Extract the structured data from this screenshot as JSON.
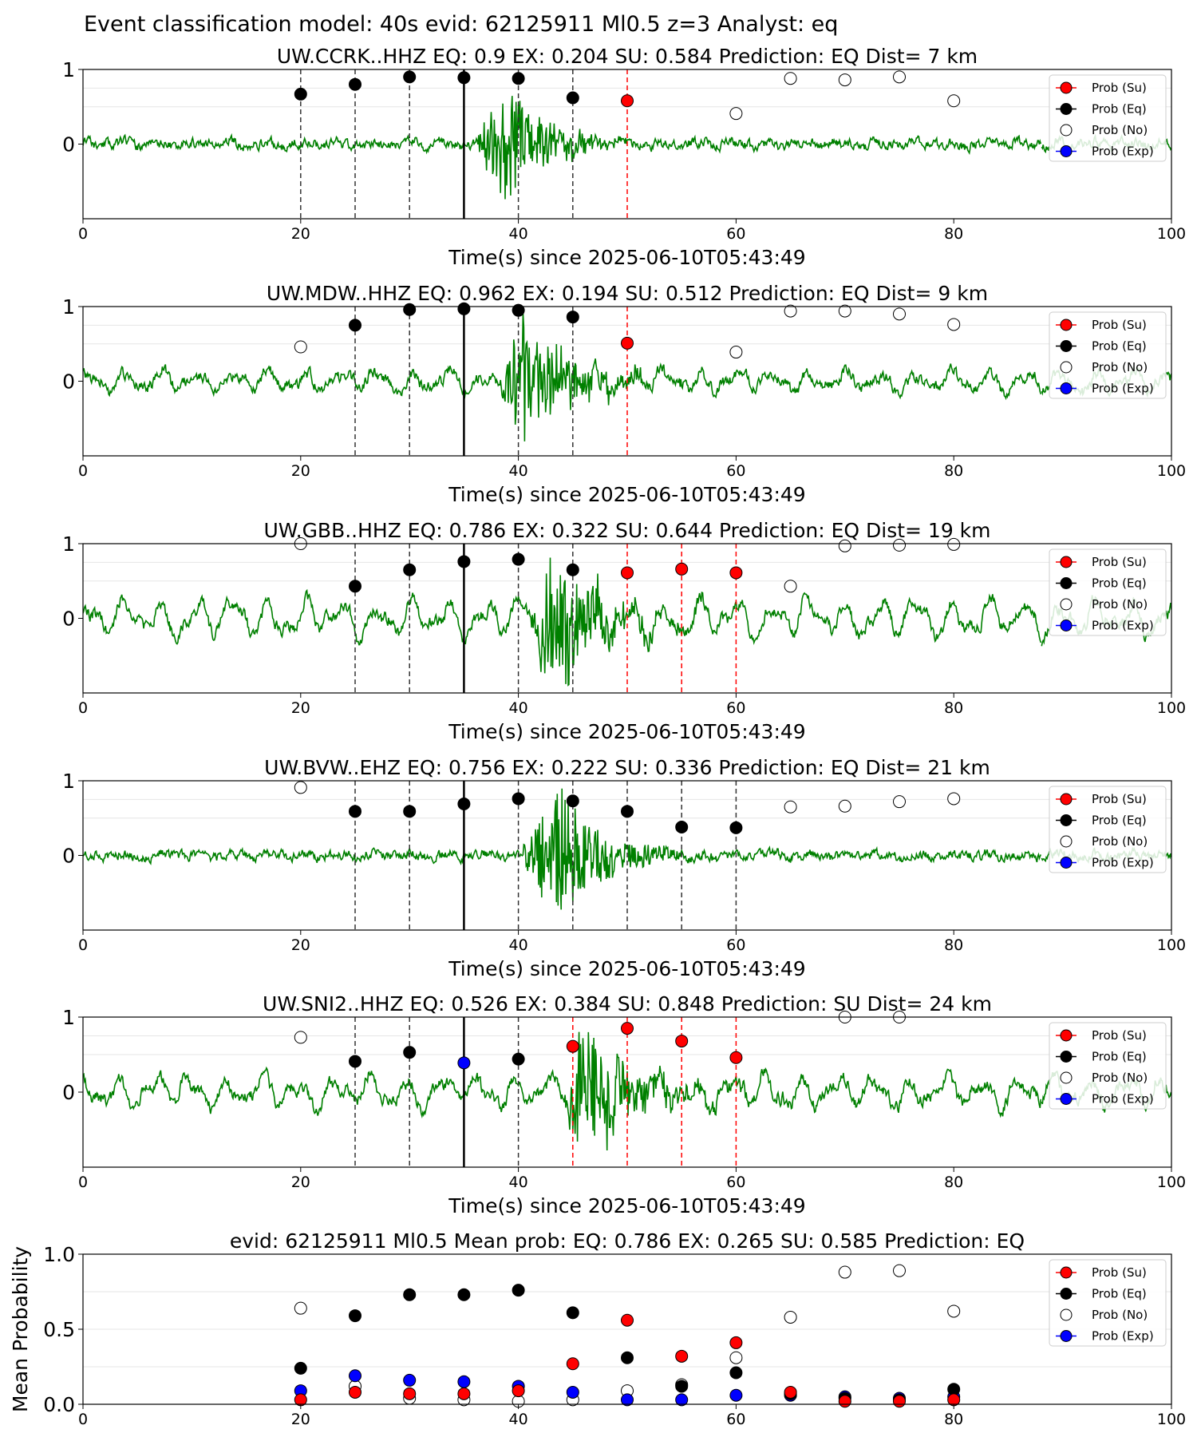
{
  "figure_title": "Event classification model: 40s evid: 62125911 Ml0.5 z=3 Analyst: eq",
  "legend": {
    "su": "Prob (Su)",
    "eq": "Prob (Eq)",
    "no": "Prob (No)",
    "exp": "Prob (Exp)"
  },
  "colors": {
    "su": "#ff0000",
    "eq": "#000000",
    "no": "#ffffff",
    "exp": "#0000ff",
    "trace": "#008000",
    "trace_faded": "#b7d9b7",
    "eq_line": "#000000",
    "su_line": "#ff0000"
  },
  "chart_data": [
    {
      "type": "scatter",
      "title": "UW.CCRK..HHZ   EQ: 0.9   EX: 0.204   SU: 0.584   Prediction: EQ    Dist= 7 km",
      "xlabel": "Time(s) since 2025-06-10T05:43:49",
      "ylabel": "",
      "xlim": [
        0,
        100
      ],
      "ylim": [
        -1,
        1
      ],
      "xticks": [
        "0",
        "20",
        "40",
        "60",
        "80",
        "100"
      ],
      "yticks": [
        "0",
        "1"
      ],
      "grid": true,
      "legend_position": "upper-right",
      "trace": {
        "amplitude": 0.05,
        "noise": 0.06,
        "event_start": 36,
        "event_peak": 38.5,
        "event_amp": 0.9,
        "decay": 3.5,
        "seed": 11
      },
      "series": {
        "eq": [
          [
            20,
            0.67
          ],
          [
            25,
            0.8
          ],
          [
            30,
            0.9
          ],
          [
            35,
            0.89
          ],
          [
            40,
            0.88
          ],
          [
            45,
            0.62
          ]
        ],
        "su": [
          [
            50,
            0.58
          ]
        ],
        "no": [
          [
            60,
            0.41
          ],
          [
            65,
            0.88
          ],
          [
            70,
            0.86
          ],
          [
            75,
            0.9
          ],
          [
            80,
            0.58
          ]
        ],
        "exp": []
      },
      "eq_window_lines": [
        20,
        25,
        30,
        40,
        45
      ],
      "su_window_lines": [
        50
      ],
      "reference_line": 35
    },
    {
      "type": "scatter",
      "title": "UW.MDW..HHZ   EQ: 0.962   EX: 0.194   SU: 0.512   Prediction: EQ    Dist= 9 km",
      "xlabel": "Time(s) since 2025-06-10T05:43:49",
      "ylabel": "",
      "xlim": [
        0,
        100
      ],
      "ylim": [
        -1,
        1
      ],
      "xticks": [
        "0",
        "20",
        "40",
        "60",
        "80",
        "100"
      ],
      "yticks": [
        "0",
        "1"
      ],
      "grid": true,
      "legend_position": "upper-right",
      "trace": {
        "amplitude": 0.17,
        "noise": 0.07,
        "event_start": 38,
        "event_peak": 40.5,
        "event_amp": 0.95,
        "decay": 4,
        "seed": 23
      },
      "series": {
        "eq": [
          [
            25,
            0.75
          ],
          [
            30,
            0.96
          ],
          [
            35,
            0.97
          ],
          [
            40,
            0.95
          ],
          [
            45,
            0.86
          ]
        ],
        "su": [
          [
            50,
            0.51
          ]
        ],
        "no": [
          [
            20,
            0.46
          ],
          [
            60,
            0.39
          ],
          [
            65,
            0.94
          ],
          [
            70,
            0.94
          ],
          [
            75,
            0.9
          ],
          [
            80,
            0.76
          ]
        ],
        "exp": []
      },
      "eq_window_lines": [
        25,
        30,
        40,
        45
      ],
      "su_window_lines": [
        50
      ],
      "reference_line": 35
    },
    {
      "type": "scatter",
      "title": "UW.GBB..HHZ   EQ: 0.786   EX: 0.322   SU: 0.644   Prediction: EQ    Dist= 19 km",
      "xlabel": "Time(s) since 2025-06-10T05:43:49",
      "ylabel": "",
      "xlim": [
        0,
        100
      ],
      "ylim": [
        -1,
        1
      ],
      "xticks": [
        "0",
        "20",
        "40",
        "60",
        "80",
        "100"
      ],
      "yticks": [
        "0",
        "1"
      ],
      "grid": true,
      "legend_position": "upper-right",
      "trace": {
        "amplitude": 0.3,
        "noise": 0.08,
        "event_start": 41,
        "event_peak": 43,
        "event_amp": 0.95,
        "decay": 4.5,
        "seed": 37
      },
      "series": {
        "eq": [
          [
            25,
            0.43
          ],
          [
            30,
            0.65
          ],
          [
            35,
            0.76
          ],
          [
            40,
            0.79
          ],
          [
            45,
            0.65
          ]
        ],
        "su": [
          [
            50,
            0.61
          ],
          [
            55,
            0.66
          ],
          [
            60,
            0.61
          ]
        ],
        "no": [
          [
            20,
            1.0
          ],
          [
            65,
            0.43
          ],
          [
            70,
            0.97
          ],
          [
            75,
            0.98
          ],
          [
            80,
            0.99
          ]
        ],
        "exp": []
      },
      "eq_window_lines": [
        25,
        30,
        40,
        45
      ],
      "su_window_lines": [
        50,
        55,
        60
      ],
      "reference_line": 35
    },
    {
      "type": "scatter",
      "title": "UW.BVW..EHZ   EQ: 0.756   EX: 0.222   SU: 0.336   Prediction: EQ    Dist= 21 km",
      "xlabel": "Time(s) since 2025-06-10T05:43:49",
      "ylabel": "",
      "xlim": [
        0,
        100
      ],
      "ylim": [
        -1,
        1
      ],
      "xticks": [
        "0",
        "20",
        "40",
        "60",
        "80",
        "100"
      ],
      "yticks": [
        "0",
        "1"
      ],
      "grid": true,
      "legend_position": "upper-right",
      "trace": {
        "amplitude": 0.04,
        "noise": 0.06,
        "event_start": 40,
        "event_peak": 43.5,
        "event_amp": 0.95,
        "decay": 4,
        "seed": 51
      },
      "series": {
        "eq": [
          [
            25,
            0.59
          ],
          [
            30,
            0.59
          ],
          [
            35,
            0.69
          ],
          [
            40,
            0.76
          ],
          [
            45,
            0.73
          ],
          [
            50,
            0.59
          ],
          [
            55,
            0.38
          ],
          [
            60,
            0.37
          ]
        ],
        "su": [],
        "no": [
          [
            20,
            0.91
          ],
          [
            65,
            0.65
          ],
          [
            70,
            0.66
          ],
          [
            75,
            0.72
          ],
          [
            80,
            0.76
          ]
        ],
        "exp": []
      },
      "eq_window_lines": [
        25,
        30,
        40,
        45,
        50,
        55,
        60
      ],
      "su_window_lines": [],
      "reference_line": 35
    },
    {
      "type": "scatter",
      "title": "UW.SNI2..HHZ   EQ: 0.526   EX: 0.384   SU: 0.848   Prediction: SU    Dist= 24 km",
      "xlabel": "Time(s) since 2025-06-10T05:43:49",
      "ylabel": "",
      "xlim": [
        0,
        100
      ],
      "ylim": [
        -1,
        1
      ],
      "xticks": [
        "0",
        "20",
        "40",
        "60",
        "80",
        "100"
      ],
      "yticks": [
        "0",
        "1"
      ],
      "grid": true,
      "legend_position": "upper-right",
      "trace": {
        "amplitude": 0.25,
        "noise": 0.08,
        "event_start": 44,
        "event_peak": 45.5,
        "event_amp": 0.95,
        "decay": 4.5,
        "seed": 67
      },
      "series": {
        "eq": [
          [
            25,
            0.41
          ],
          [
            30,
            0.53
          ],
          [
            40,
            0.44
          ]
        ],
        "su": [
          [
            45,
            0.61
          ],
          [
            50,
            0.85
          ],
          [
            55,
            0.68
          ],
          [
            60,
            0.46
          ]
        ],
        "no": [
          [
            20,
            0.73
          ],
          [
            70,
            1.0
          ],
          [
            75,
            1.0
          ]
        ],
        "exp": [
          [
            35,
            0.39
          ]
        ]
      },
      "eq_window_lines": [
        25,
        30,
        40
      ],
      "su_window_lines": [
        45,
        50,
        55,
        60
      ],
      "reference_line": 35
    },
    {
      "type": "scatter",
      "title": "evid: 62125911  Ml0.5   Mean prob:   EQ: 0.786  EX: 0.265  SU: 0.585   Prediction: EQ",
      "xlabel": "",
      "ylabel": "Mean Probability",
      "xlim": [
        0,
        100
      ],
      "ylim": [
        0,
        1
      ],
      "xticks": [
        "0",
        "20",
        "40",
        "60",
        "80",
        "100"
      ],
      "yticks": [
        "0.0",
        "0.5",
        "1.0"
      ],
      "grid": true,
      "legend_position": "upper-right",
      "series": {
        "no": [
          [
            20,
            0.64
          ],
          [
            25,
            0.12
          ],
          [
            30,
            0.04
          ],
          [
            35,
            0.03
          ],
          [
            40,
            0.02
          ],
          [
            45,
            0.03
          ],
          [
            50,
            0.09
          ],
          [
            55,
            0.13
          ],
          [
            60,
            0.31
          ],
          [
            65,
            0.58
          ],
          [
            70,
            0.88
          ],
          [
            75,
            0.89
          ],
          [
            80,
            0.62
          ]
        ],
        "exp": [
          [
            20,
            0.09
          ],
          [
            25,
            0.19
          ],
          [
            30,
            0.16
          ],
          [
            35,
            0.15
          ],
          [
            40,
            0.12
          ],
          [
            45,
            0.08
          ],
          [
            50,
            0.03
          ],
          [
            55,
            0.03
          ],
          [
            60,
            0.06
          ],
          [
            65,
            0.06
          ],
          [
            70,
            0.05
          ],
          [
            75,
            0.04
          ],
          [
            80,
            0.05
          ]
        ],
        "eq": [
          [
            20,
            0.24
          ],
          [
            25,
            0.59
          ],
          [
            30,
            0.73
          ],
          [
            35,
            0.73
          ],
          [
            40,
            0.76
          ],
          [
            45,
            0.61
          ],
          [
            50,
            0.31
          ],
          [
            55,
            0.12
          ],
          [
            60,
            0.21
          ],
          [
            65,
            0.07
          ],
          [
            70,
            0.04
          ],
          [
            75,
            0.03
          ],
          [
            80,
            0.1
          ]
        ],
        "su": [
          [
            20,
            0.03
          ],
          [
            25,
            0.08
          ],
          [
            30,
            0.07
          ],
          [
            35,
            0.07
          ],
          [
            40,
            0.09
          ],
          [
            45,
            0.27
          ],
          [
            50,
            0.56
          ],
          [
            55,
            0.32
          ],
          [
            60,
            0.41
          ],
          [
            65,
            0.08
          ],
          [
            70,
            0.02
          ],
          [
            75,
            0.02
          ],
          [
            80,
            0.03
          ]
        ]
      }
    }
  ]
}
